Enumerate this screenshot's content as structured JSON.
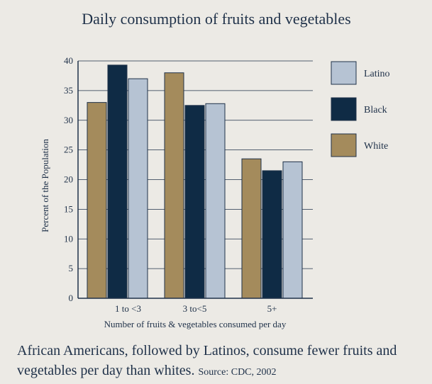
{
  "chart_data": {
    "type": "bar",
    "title": "Daily consumption of fruits and vegetables",
    "xlabel": "Number of fruits & vegetables consumed per day",
    "ylabel": "Percent of the Population",
    "categories": [
      "1 to <3",
      "3 to<5",
      "5+"
    ],
    "series": [
      {
        "name": "White",
        "values": [
          33,
          38,
          23.5
        ],
        "color": "#A48B5C"
      },
      {
        "name": "Black",
        "values": [
          39.3,
          32.5,
          21.5
        ],
        "color": "#0F2B45"
      },
      {
        "name": "Latino",
        "values": [
          37,
          32.8,
          23
        ],
        "color": "#B6C3D3"
      }
    ],
    "legend_order": [
      "Latino",
      "Black",
      "White"
    ],
    "ylim": [
      0,
      40
    ],
    "yticks": [
      0,
      5,
      10,
      15,
      20,
      25,
      30,
      35,
      40
    ],
    "grid": true,
    "legend": "right"
  },
  "caption": {
    "text": "African Americans, followed by Latinos, consume fewer fruits and vegetables per day than whites.",
    "source": "Source: CDC, 2002"
  }
}
